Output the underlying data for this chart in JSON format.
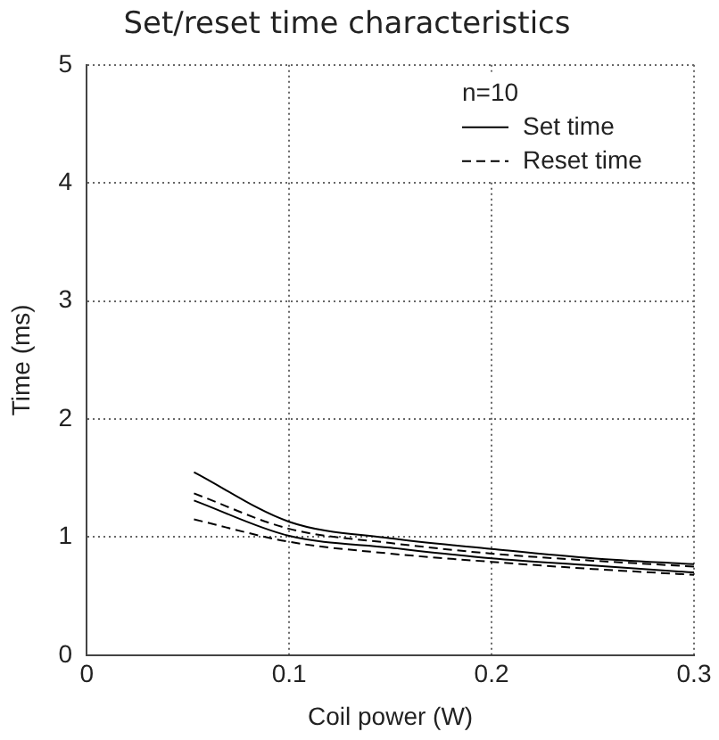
{
  "chart_data": {
    "type": "line",
    "title": "Set/reset time characteristics",
    "xlabel": "Coil power (W)",
    "ylabel": "Time (ms)",
    "x": [
      0.053,
      0.1,
      0.15,
      0.2,
      0.25,
      0.3
    ],
    "series": [
      {
        "name": "Set time",
        "color": "#000000",
        "line_style": "solid",
        "values": [
          1.55,
          1.13,
          0.99,
          0.9,
          0.82,
          0.77
        ]
      },
      {
        "color": "#000000",
        "line_style": "solid",
        "values": [
          1.31,
          1.01,
          0.91,
          0.82,
          0.76,
          0.7
        ]
      },
      {
        "name": "Reset time",
        "color": "#000000",
        "line_style": "dashed",
        "values": [
          1.37,
          1.07,
          0.95,
          0.86,
          0.8,
          0.75
        ]
      },
      {
        "color": "#000000",
        "line_style": "dashed",
        "values": [
          1.15,
          0.96,
          0.86,
          0.79,
          0.73,
          0.68
        ]
      }
    ],
    "annotations": [
      "n=10"
    ],
    "xlim": [
      0,
      0.3
    ],
    "xticks": [
      0,
      0.1,
      0.2,
      0.3
    ],
    "ylim": [
      0,
      5
    ],
    "yticks": [
      0,
      1,
      2,
      3,
      4,
      5
    ],
    "grid": true,
    "legend": "top right",
    "marker": "none"
  }
}
